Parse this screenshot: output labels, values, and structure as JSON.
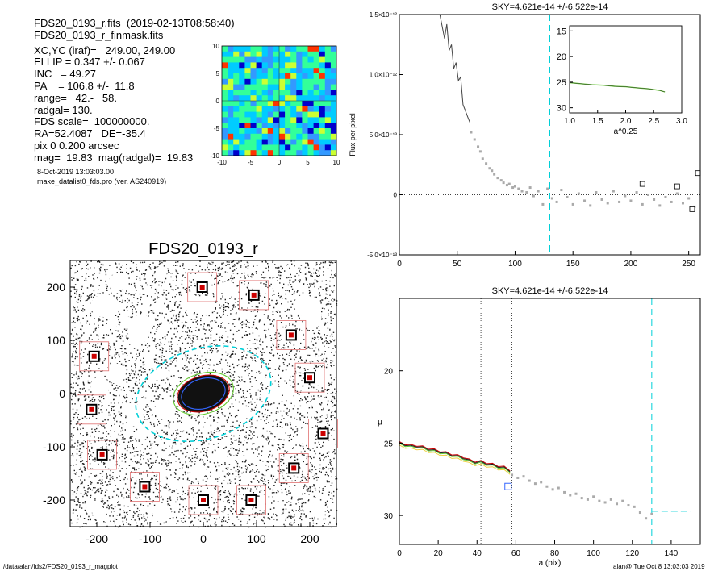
{
  "header": {
    "file_line": "FDS20_0193_r.fits  (2019-02-13T08:58:40)",
    "mask_line": "FDS20_0193_r_finmask.fits",
    "params": [
      "XC,YC (iraf)=   249.00, 249.00",
      "ELLIP = 0.347 +/- 0.067",
      "INC   = 49.27",
      "PA    = 106.8 +/-  11.8",
      "range=   42.-   58.",
      "radgal= 130.",
      "FDS scale=  100000000.",
      "RA=52.4087   DE=-35.4",
      "pix 0 0.200 arcsec",
      "mag=  19.83  mag(radgal)=  19.83"
    ],
    "date_line": "8-Oct-2019 13:03:03.00",
    "program_line": "make_datalist0_fds.pro (ver. AS240919)"
  },
  "footer": {
    "left": "/data/alan/fds2/FDS20_0193_r_magplot",
    "right": "alan@  Tue Oct  8 13:03:03 2019"
  },
  "colors": {
    "cyan": "#00d0d8",
    "green": "#66cc33",
    "blue": "#3366ff",
    "red": "#cc0000",
    "gray": "#999999",
    "dark": "#555555"
  },
  "chart_data": [
    {
      "type": "heatmap",
      "title": "",
      "xlim": [
        -10,
        10
      ],
      "ylim": [
        -10,
        10
      ],
      "xticks": [
        -10,
        -5,
        0,
        5,
        10
      ],
      "yticks": [
        -10,
        -5,
        0,
        5,
        10
      ],
      "colormap": [
        "#0000cc",
        "#3399ff",
        "#00ccff",
        "#33ff99",
        "#ccff33",
        "#ff3300"
      ]
    },
    {
      "type": "scatter",
      "title": "FDS20_0193_r",
      "xlim": [
        -250,
        250
      ],
      "ylim": [
        -250,
        250
      ],
      "xticks": [
        -200,
        -100,
        0,
        100,
        200
      ],
      "yticks": [
        -200,
        -100,
        0,
        100,
        200
      ],
      "ellipses": [
        {
          "name": "outer",
          "a": 130,
          "b": 85,
          "pa_deg": 106.8,
          "color": "#00d0d8"
        },
        {
          "name": "inner-green",
          "a": 58,
          "b": 38,
          "pa_deg": 106.8,
          "color": "#66cc33"
        },
        {
          "name": "inner-red",
          "a": 50,
          "b": 33,
          "pa_deg": 106.8,
          "color": "#cc0000"
        },
        {
          "name": "inner-blue",
          "a": 42,
          "b": 28,
          "pa_deg": 106.8,
          "color": "#3366ff"
        }
      ],
      "masked_stars": [
        [
          -2,
          200
        ],
        [
          95,
          185
        ],
        [
          -205,
          70
        ],
        [
          165,
          110
        ],
        [
          -210,
          -30
        ],
        [
          200,
          30
        ],
        [
          -190,
          -115
        ],
        [
          225,
          -75
        ],
        [
          -110,
          -175
        ],
        [
          170,
          -140
        ],
        [
          0,
          -200
        ],
        [
          90,
          -200
        ]
      ]
    },
    {
      "type": "line",
      "title": "SKY=4.621e-14 +/-6.522e-14",
      "xlabel": "",
      "ylabel": "Flux per pixel",
      "xlim": [
        0,
        260
      ],
      "ylim": [
        -5e-13,
        1.5e-12
      ],
      "xticks": [
        0,
        50,
        100,
        150,
        200,
        250
      ],
      "yticks": [
        -5e-13,
        0,
        5e-13,
        1e-12,
        1.5e-12
      ],
      "ytick_labels": [
        "-5.0×10⁻¹³",
        "0",
        "5.0×10⁻¹³",
        "1.0×10⁻¹²",
        "1.5×10⁻¹²"
      ],
      "vline_x": 130,
      "series": [
        {
          "x": [
            35,
            37,
            39,
            41,
            43,
            45,
            47,
            49,
            51,
            53,
            55,
            57,
            59,
            61
          ],
          "values": [
            1.5e-12,
            1.4e-12,
            1.3e-12,
            1.42e-12,
            1.2e-12,
            1.25e-12,
            1.05e-12,
            1.1e-12,
            9.5e-13,
            9.8e-13,
            7.5e-13,
            7e-13,
            6.5e-13,
            6e-13
          ]
        },
        {
          "x": [
            120,
            125,
            130,
            135,
            140,
            145,
            150,
            155,
            160,
            165,
            170,
            175,
            180,
            185,
            190,
            195,
            200,
            205,
            210,
            215,
            220,
            225,
            230,
            235,
            240,
            245,
            250,
            255,
            260
          ],
          "values": [
            4e-14,
            2e-14,
            3e-14,
            0,
            -3e-14,
            1e-14,
            -2e-14,
            -4e-14,
            -1e-14,
            -3e-14,
            0,
            -2e-14,
            -3e-14,
            -1e-14,
            -4e-14,
            -2e-14,
            -3e-14,
            0,
            -4e-14,
            -1e-14,
            -2e-14,
            -3e-14,
            -1e-14,
            0,
            -2e-14,
            -1e-14,
            -2e-14,
            -1e-14,
            -1e-14
          ]
        }
      ],
      "gray_points_x": [
        62,
        65,
        68,
        70,
        72,
        75,
        78,
        80,
        82,
        85,
        88,
        90,
        93,
        95,
        98,
        100,
        103,
        106,
        110,
        113,
        116,
        120,
        124,
        128,
        132,
        136,
        140,
        145,
        150,
        155,
        160,
        165,
        170,
        175,
        180,
        185,
        190,
        195,
        200,
        205,
        210,
        215,
        220,
        225,
        230,
        235,
        240,
        245,
        250,
        255
      ],
      "gray_points_y": [
        5.2e-13,
        4.6e-13,
        4e-13,
        3.6e-13,
        3e-13,
        2.6e-13,
        2.2e-13,
        2e-13,
        1.7e-13,
        1.4e-13,
        1.2e-13,
        1e-13,
        8e-14,
        9e-14,
        6e-14,
        7e-14,
        5e-14,
        3e-14,
        2e-14,
        6e-14,
        -1e-14,
        3e-14,
        -8e-14,
        5e-14,
        -3e-14,
        -6e-14,
        4e-14,
        -2e-14,
        -8e-14,
        1e-14,
        -5e-14,
        -9e-14,
        2e-14,
        -4e-14,
        -7e-14,
        3e-14,
        -6e-14,
        -1e-14,
        -5e-14,
        2e-14,
        -8e-14,
        0,
        -4e-14,
        -9e-14,
        -2e-14,
        -6e-14,
        1e-14,
        -7e-14,
        -3e-14,
        -1e-13
      ],
      "open_squares": [
        [
          210,
          9e-14
        ],
        [
          240,
          7e-14
        ],
        [
          253,
          -1.2e-13
        ],
        [
          258,
          1.8e-13
        ]
      ]
    },
    {
      "type": "line",
      "title": "",
      "xlabel": "a^0.25",
      "ylabel": "",
      "xlim": [
        1.0,
        3.0
      ],
      "ylim": [
        31,
        14
      ],
      "xticks": [
        1.0,
        1.5,
        2.0,
        2.5,
        3.0
      ],
      "yticks": [
        15,
        20,
        25,
        30
      ],
      "series": [
        {
          "x": [
            1.0,
            1.2,
            1.4,
            1.6,
            1.8,
            2.0,
            2.2,
            2.4,
            2.6,
            2.7
          ],
          "values": [
            25.1,
            25.3,
            25.5,
            25.6,
            25.8,
            25.9,
            26.1,
            26.3,
            26.6,
            26.9
          ]
        }
      ]
    },
    {
      "type": "line",
      "title": "SKY=4.621e-14 +/-6.522e-14",
      "xlabel": "a (pix)",
      "ylabel": "μ",
      "xlim": [
        0,
        155
      ],
      "ylim": [
        32,
        15
      ],
      "xticks": [
        0,
        20,
        40,
        60,
        80,
        100,
        120,
        140
      ],
      "yticks": [
        20,
        25,
        30
      ],
      "vlines_dotted": [
        42,
        58
      ],
      "vline_dashed": 130,
      "sky_level": 29.7,
      "series": [
        {
          "x": [
            0,
            3,
            6,
            9,
            12,
            15,
            18,
            21,
            24,
            27,
            30,
            33,
            36,
            39,
            42,
            45,
            48,
            51,
            54,
            57
          ],
          "values": [
            25.0,
            25.1,
            25.2,
            25.2,
            25.3,
            25.4,
            25.5,
            25.6,
            25.7,
            25.8,
            25.9,
            26.0,
            26.2,
            26.3,
            26.3,
            26.4,
            26.5,
            26.6,
            26.7,
            26.9
          ]
        }
      ],
      "gray_points_x": [
        58,
        61,
        64,
        67,
        70,
        73,
        76,
        79,
        82,
        85,
        88,
        91,
        94,
        97,
        100,
        103,
        106,
        109,
        112,
        115,
        118,
        121,
        124,
        127,
        130
      ],
      "gray_points_y": [
        27.2,
        27.4,
        27.3,
        27.6,
        27.8,
        27.7,
        28.0,
        28.2,
        28.1,
        28.4,
        28.6,
        28.5,
        28.8,
        28.9,
        28.7,
        29.0,
        29.1,
        28.9,
        29.2,
        29.0,
        29.3,
        29.4,
        29.8,
        30.2,
        29.9
      ],
      "open_square": [
        56,
        28.0
      ]
    }
  ]
}
